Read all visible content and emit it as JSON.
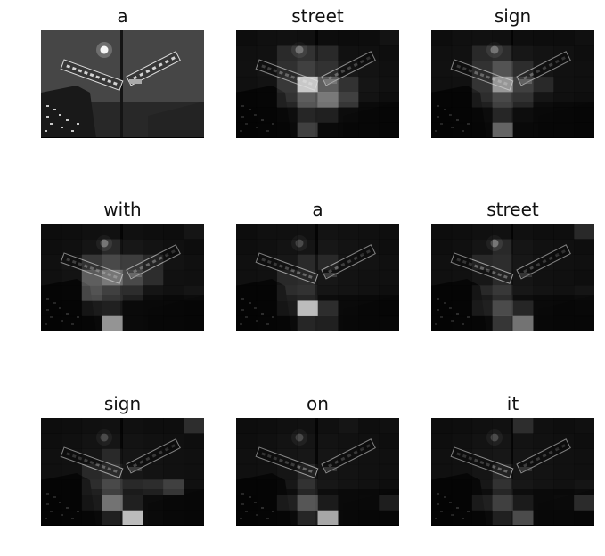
{
  "figure": {
    "background": "#ffffff",
    "panels": [
      {
        "title": "a",
        "kind": "original",
        "attention": []
      },
      {
        "title": "street",
        "kind": "attention",
        "attention": [
          [
            0.05,
            0.08,
            0.1,
            0.08,
            0.05,
            0.04,
            0.05,
            0.12
          ],
          [
            0.08,
            0.1,
            0.22,
            0.3,
            0.2,
            0.1,
            0.08,
            0.06
          ],
          [
            0.1,
            0.15,
            0.28,
            0.4,
            0.3,
            0.18,
            0.12,
            0.08
          ],
          [
            0.08,
            0.12,
            0.35,
            0.9,
            0.55,
            0.3,
            0.15,
            0.1
          ],
          [
            0.06,
            0.1,
            0.3,
            0.55,
            0.65,
            0.4,
            0.12,
            0.06
          ],
          [
            0.05,
            0.08,
            0.18,
            0.3,
            0.25,
            0.15,
            0.08,
            0.05
          ],
          [
            0.04,
            0.06,
            0.12,
            0.45,
            0.12,
            0.08,
            0.06,
            0.05
          ]
        ]
      },
      {
        "title": "sign",
        "kind": "attention",
        "attention": [
          [
            0.05,
            0.08,
            0.1,
            0.08,
            0.06,
            0.05,
            0.05,
            0.08
          ],
          [
            0.08,
            0.1,
            0.2,
            0.25,
            0.18,
            0.12,
            0.1,
            0.06
          ],
          [
            0.1,
            0.12,
            0.3,
            0.5,
            0.25,
            0.15,
            0.1,
            0.08
          ],
          [
            0.08,
            0.1,
            0.32,
            0.75,
            0.4,
            0.2,
            0.1,
            0.08
          ],
          [
            0.06,
            0.08,
            0.25,
            0.45,
            0.3,
            0.15,
            0.08,
            0.06
          ],
          [
            0.05,
            0.08,
            0.15,
            0.3,
            0.18,
            0.1,
            0.06,
            0.05
          ],
          [
            0.04,
            0.06,
            0.1,
            0.6,
            0.1,
            0.08,
            0.06,
            0.05
          ]
        ]
      },
      {
        "title": "with",
        "kind": "attention",
        "attention": [
          [
            0.05,
            0.06,
            0.08,
            0.1,
            0.08,
            0.06,
            0.05,
            0.15
          ],
          [
            0.06,
            0.08,
            0.15,
            0.2,
            0.18,
            0.12,
            0.08,
            0.05
          ],
          [
            0.08,
            0.15,
            0.35,
            0.45,
            0.38,
            0.22,
            0.12,
            0.08
          ],
          [
            0.08,
            0.12,
            0.55,
            0.65,
            0.45,
            0.25,
            0.1,
            0.08
          ],
          [
            0.06,
            0.1,
            0.5,
            0.4,
            0.25,
            0.15,
            0.1,
            0.15
          ],
          [
            0.05,
            0.08,
            0.2,
            0.25,
            0.12,
            0.1,
            0.08,
            0.05
          ],
          [
            0.04,
            0.06,
            0.1,
            0.75,
            0.12,
            0.08,
            0.06,
            0.05
          ]
        ]
      },
      {
        "title": "a",
        "kind": "attention",
        "attention": [
          [
            0.05,
            0.08,
            0.08,
            0.1,
            0.12,
            0.1,
            0.08,
            0.06
          ],
          [
            0.06,
            0.08,
            0.12,
            0.15,
            0.18,
            0.12,
            0.1,
            0.06
          ],
          [
            0.08,
            0.12,
            0.18,
            0.22,
            0.2,
            0.15,
            0.12,
            0.08
          ],
          [
            0.08,
            0.1,
            0.2,
            0.25,
            0.18,
            0.12,
            0.1,
            0.08
          ],
          [
            0.06,
            0.08,
            0.25,
            0.3,
            0.15,
            0.12,
            0.1,
            0.06
          ],
          [
            0.05,
            0.08,
            0.2,
            0.85,
            0.35,
            0.12,
            0.08,
            0.05
          ],
          [
            0.04,
            0.06,
            0.12,
            0.3,
            0.25,
            0.1,
            0.08,
            0.06
          ]
        ]
      },
      {
        "title": "street",
        "kind": "attention",
        "attention": [
          [
            0.05,
            0.06,
            0.08,
            0.1,
            0.08,
            0.06,
            0.06,
            0.2
          ],
          [
            0.06,
            0.08,
            0.15,
            0.2,
            0.15,
            0.1,
            0.08,
            0.06
          ],
          [
            0.08,
            0.1,
            0.2,
            0.25,
            0.18,
            0.12,
            0.1,
            0.08
          ],
          [
            0.08,
            0.1,
            0.18,
            0.22,
            0.15,
            0.1,
            0.08,
            0.06
          ],
          [
            0.06,
            0.08,
            0.2,
            0.35,
            0.18,
            0.12,
            0.1,
            0.15
          ],
          [
            0.05,
            0.08,
            0.25,
            0.5,
            0.3,
            0.12,
            0.08,
            0.1
          ],
          [
            0.04,
            0.06,
            0.12,
            0.4,
            0.65,
            0.1,
            0.08,
            0.06
          ]
        ]
      },
      {
        "title": "sign",
        "kind": "attention",
        "attention": [
          [
            0.05,
            0.06,
            0.08,
            0.1,
            0.08,
            0.06,
            0.06,
            0.25
          ],
          [
            0.06,
            0.08,
            0.12,
            0.15,
            0.12,
            0.1,
            0.08,
            0.06
          ],
          [
            0.08,
            0.1,
            0.15,
            0.2,
            0.15,
            0.12,
            0.1,
            0.08
          ],
          [
            0.08,
            0.1,
            0.2,
            0.3,
            0.18,
            0.12,
            0.1,
            0.08
          ],
          [
            0.06,
            0.08,
            0.25,
            0.45,
            0.2,
            0.25,
            0.4,
            0.08
          ],
          [
            0.05,
            0.08,
            0.2,
            0.65,
            0.25,
            0.15,
            0.1,
            0.08
          ],
          [
            0.04,
            0.06,
            0.1,
            0.25,
            0.85,
            0.15,
            0.1,
            0.06
          ]
        ]
      },
      {
        "title": "on",
        "kind": "attention",
        "attention": [
          [
            0.05,
            0.06,
            0.08,
            0.1,
            0.08,
            0.15,
            0.06,
            0.08
          ],
          [
            0.06,
            0.08,
            0.12,
            0.15,
            0.12,
            0.1,
            0.08,
            0.06
          ],
          [
            0.08,
            0.1,
            0.15,
            0.18,
            0.15,
            0.12,
            0.1,
            0.08
          ],
          [
            0.08,
            0.1,
            0.15,
            0.2,
            0.15,
            0.12,
            0.1,
            0.08
          ],
          [
            0.06,
            0.08,
            0.18,
            0.3,
            0.18,
            0.12,
            0.1,
            0.06
          ],
          [
            0.05,
            0.08,
            0.25,
            0.55,
            0.2,
            0.12,
            0.12,
            0.25
          ],
          [
            0.04,
            0.06,
            0.12,
            0.3,
            0.8,
            0.1,
            0.08,
            0.06
          ]
        ]
      },
      {
        "title": "it",
        "kind": "attention",
        "attention": [
          [
            0.05,
            0.06,
            0.08,
            0.1,
            0.25,
            0.08,
            0.06,
            0.08
          ],
          [
            0.06,
            0.08,
            0.12,
            0.15,
            0.12,
            0.1,
            0.08,
            0.06
          ],
          [
            0.08,
            0.1,
            0.15,
            0.18,
            0.15,
            0.12,
            0.1,
            0.08
          ],
          [
            0.08,
            0.1,
            0.15,
            0.2,
            0.15,
            0.12,
            0.1,
            0.08
          ],
          [
            0.06,
            0.08,
            0.18,
            0.3,
            0.18,
            0.12,
            0.1,
            0.15
          ],
          [
            0.05,
            0.08,
            0.25,
            0.45,
            0.2,
            0.12,
            0.15,
            0.35
          ],
          [
            0.04,
            0.06,
            0.12,
            0.25,
            0.5,
            0.1,
            0.1,
            0.06
          ]
        ]
      }
    ]
  }
}
